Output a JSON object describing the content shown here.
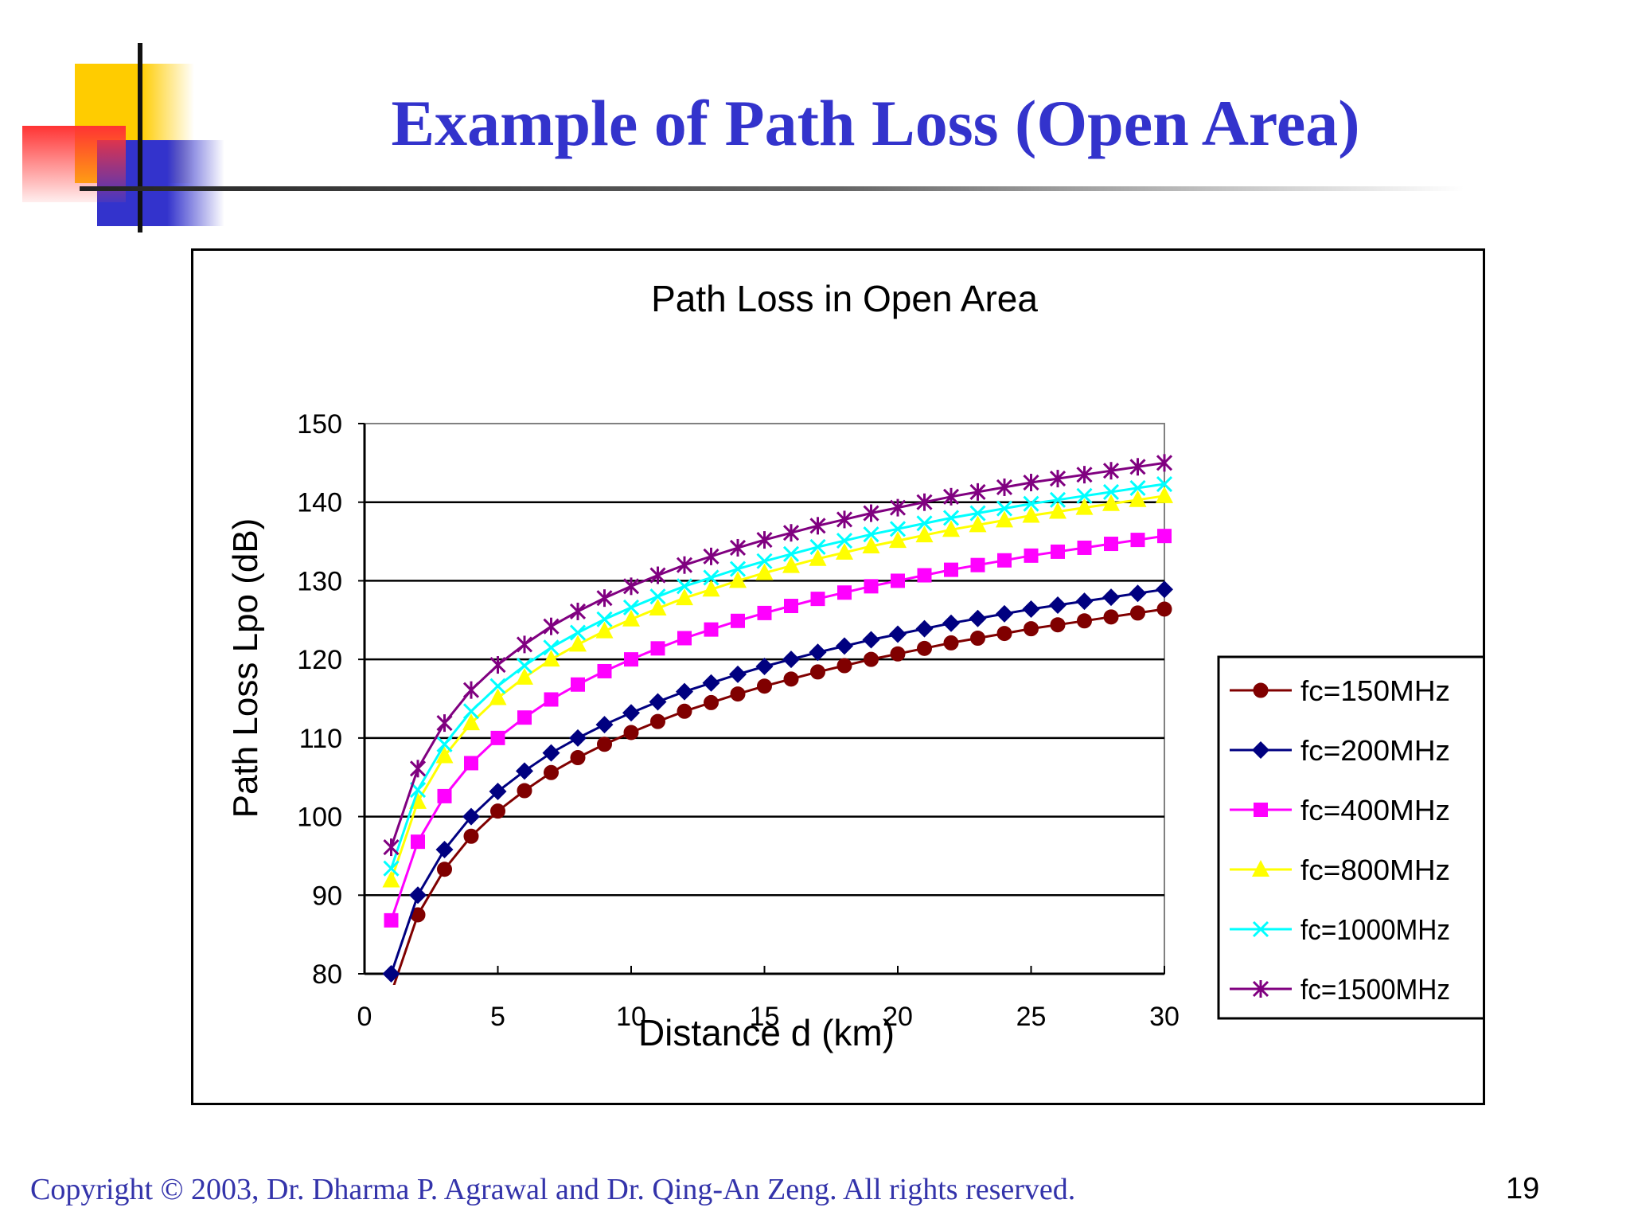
{
  "slide": {
    "title": "Example of Path Loss (Open Area)",
    "copyright": "Copyright © 2003, Dr. Dharma P. Agrawal and Dr. Qing-An Zeng. All rights reserved.",
    "page_number": "19"
  },
  "colors": {
    "title": "#3333cc",
    "deco_yellow": "#ffcc00",
    "deco_red": "#ff3333",
    "deco_blue": "#3333cc"
  },
  "chart_data": {
    "type": "line",
    "title": "Path Loss in Open Area",
    "xlabel": "Distance d (km)",
    "ylabel": "Path Loss Lpo (dB)",
    "xlim": [
      0,
      30
    ],
    "ylim": [
      80,
      150
    ],
    "xticks": [
      0,
      5,
      10,
      15,
      20,
      25,
      30
    ],
    "yticks": [
      80,
      90,
      100,
      110,
      120,
      130,
      140,
      150
    ],
    "grid": "horizontal major",
    "legend_position": "right",
    "x": [
      1,
      2,
      3,
      4,
      5,
      6,
      7,
      8,
      9,
      10,
      11,
      12,
      13,
      14,
      15,
      16,
      17,
      18,
      19,
      20,
      21,
      22,
      23,
      24,
      25,
      26,
      27,
      28,
      29,
      30
    ],
    "series": [
      {
        "name": "fc=150MHz",
        "color": "#800000",
        "marker": "circle",
        "values": [
          77.5,
          87.5,
          93.3,
          97.5,
          100.7,
          103.3,
          105.6,
          107.5,
          109.2,
          110.7,
          112.1,
          113.4,
          114.5,
          115.6,
          116.6,
          117.5,
          118.4,
          119.2,
          120.0,
          120.7,
          121.4,
          122.1,
          122.7,
          123.3,
          123.9,
          124.4,
          124.9,
          125.4,
          125.9,
          126.4
        ]
      },
      {
        "name": "fc=200MHz",
        "color": "#000080",
        "marker": "diamond",
        "values": [
          80.0,
          90.0,
          95.8,
          100.0,
          103.2,
          105.8,
          108.1,
          110.0,
          111.7,
          113.2,
          114.6,
          115.9,
          117.0,
          118.1,
          119.1,
          120.0,
          120.9,
          121.7,
          122.5,
          123.2,
          123.9,
          124.6,
          125.2,
          125.8,
          126.4,
          126.9,
          127.4,
          127.9,
          128.4,
          128.9
        ]
      },
      {
        "name": "fc=400MHz",
        "color": "#ff00ff",
        "marker": "square",
        "values": [
          86.8,
          96.8,
          102.6,
          106.8,
          110.0,
          112.6,
          114.9,
          116.8,
          118.5,
          120.0,
          121.4,
          122.7,
          123.8,
          124.9,
          125.9,
          126.8,
          127.7,
          128.5,
          129.3,
          130.0,
          130.7,
          131.4,
          132.0,
          132.6,
          133.2,
          133.7,
          134.2,
          134.7,
          135.2,
          135.7
        ]
      },
      {
        "name": "fc=800MHz",
        "color": "#ffff00",
        "marker": "triangle",
        "values": [
          91.9,
          101.9,
          107.7,
          111.9,
          115.1,
          117.7,
          120.0,
          121.9,
          123.6,
          125.1,
          126.5,
          127.8,
          128.9,
          130.0,
          131.0,
          131.9,
          132.8,
          133.6,
          134.4,
          135.1,
          135.8,
          136.5,
          137.1,
          137.7,
          138.3,
          138.8,
          139.3,
          139.8,
          140.3,
          140.8
        ]
      },
      {
        "name": "fc=1000MHz",
        "color": "#00ffff",
        "marker": "x",
        "values": [
          93.4,
          103.4,
          109.2,
          113.4,
          116.6,
          119.2,
          121.5,
          123.4,
          125.1,
          126.6,
          128.0,
          129.3,
          130.4,
          131.5,
          132.5,
          133.4,
          134.3,
          135.1,
          135.9,
          136.6,
          137.3,
          138.0,
          138.6,
          139.2,
          139.8,
          140.3,
          140.8,
          141.3,
          141.8,
          142.3
        ]
      },
      {
        "name": "fc=1500MHz",
        "color": "#800080",
        "marker": "star",
        "values": [
          96.1,
          106.1,
          111.9,
          116.1,
          119.3,
          121.9,
          124.2,
          126.1,
          127.8,
          129.3,
          130.7,
          132.0,
          133.1,
          134.2,
          135.2,
          136.1,
          137.0,
          137.8,
          138.6,
          139.3,
          140.0,
          140.7,
          141.3,
          141.9,
          142.5,
          143.0,
          143.5,
          144.0,
          144.5,
          145.0
        ]
      }
    ]
  }
}
